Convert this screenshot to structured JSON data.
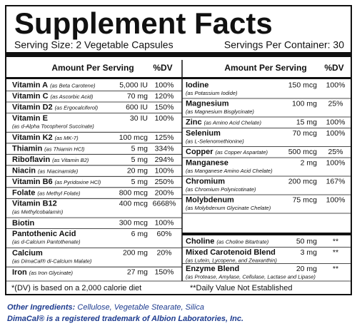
{
  "header": {
    "title": "Supplement Facts",
    "serving_size": "Serving Size: 2 Vegetable Capsules",
    "servings_per_container": "Servings Per Container: 30"
  },
  "left": {
    "amount_header": "Amount Per Serving",
    "dv_header": "%DV",
    "rows": [
      {
        "name": "Vitamin A",
        "source": "(as Beta Carotene)",
        "amount": "5,000 IU",
        "dv": "100%"
      },
      {
        "name": "Vitamin C",
        "source": "(as Ascorbic Acid)",
        "amount": "70 mg",
        "dv": "120%"
      },
      {
        "name": "Vitamin D2",
        "source": "(as Ergocalciferol)",
        "amount": "600 IU",
        "dv": "150%"
      },
      {
        "name": "Vitamin E",
        "source_below": "(as d-Alpha Tocopherol Succinate)",
        "amount": "30 IU",
        "dv": "100%"
      },
      {
        "name": "Vitamin K2",
        "source": "(as MK-7)",
        "amount": "100 mcg",
        "dv": "125%"
      },
      {
        "name": "Thiamin",
        "source": "(as Thiamin HCl)",
        "amount": "5 mg",
        "dv": "334%"
      },
      {
        "name": "Riboflavin",
        "source": "(as Vitamin B2)",
        "amount": "5 mg",
        "dv": "294%"
      },
      {
        "name": "Niacin",
        "source": "(as Niacinamide)",
        "amount": "20 mg",
        "dv": "100%"
      },
      {
        "name": "Vitamin B6",
        "source": "(as Pyridoxine HCl)",
        "amount": "5 mg",
        "dv": "250%"
      },
      {
        "name": "Folate",
        "source": "(as Methyl Folate)",
        "amount": "800 mcg",
        "dv": "200%"
      },
      {
        "name": "Vitamin B12",
        "source_below": "(as Methylcobalamin)",
        "amount": "400 mcg",
        "dv": "6668%"
      },
      {
        "name": "Biotin",
        "amount": "300 mcg",
        "dv": "100%"
      },
      {
        "name": "Pantothenic Acid",
        "source_below": "(as d-Calcium Pantothenate)",
        "amount": "6 mg",
        "dv": "60%"
      },
      {
        "name": "Calcium",
        "source_below": "(as DimaCal® di-Calcium Malate)",
        "amount": "200 mg",
        "dv": "20%"
      },
      {
        "name": "Iron",
        "source": "(as Iron Glycinate)",
        "amount": "27 mg",
        "dv": "150%"
      }
    ]
  },
  "right": {
    "amount_header": "Amount Per Serving",
    "dv_header": "%DV",
    "rows": [
      {
        "name": "Iodine",
        "source_below": "(as Potassium Iodide)",
        "amount": "150 mcg",
        "dv": "100%"
      },
      {
        "name": "Magnesium",
        "source_below": "(as Magnesium Bisglycinate)",
        "amount": "100 mg",
        "dv": "25%"
      },
      {
        "name": "Zinc",
        "source": "(as Amino Acid Chelate)",
        "amount": "15 mg",
        "dv": "100%"
      },
      {
        "name": "Selenium",
        "source_below": "(as L-Selenomethionine)",
        "amount": "70 mcg",
        "dv": "100%"
      },
      {
        "name": "Copper",
        "source": "(as Copper Aspartate)",
        "amount": "500 mcg",
        "dv": "25%"
      },
      {
        "name": "Manganese",
        "source_below": "(as Manganese Amino Acid Chelate)",
        "amount": "2 mg",
        "dv": "100%"
      },
      {
        "name": "Chromium",
        "source_below": "(as Chromium Polynicotinate)",
        "amount": "200 mcg",
        "dv": "167%"
      },
      {
        "name": "Molybdenum",
        "source_below": "(as Molybdenum Glycinate Chelate)",
        "amount": "75 mcg",
        "dv": "100%"
      }
    ],
    "other_rows": [
      {
        "name": "Choline",
        "source": "(as Choline Bitartrate)",
        "amount": "50 mg",
        "dv": "**"
      },
      {
        "name": "Mixed Carotenoid Blend",
        "source_below": "(as Lutein, Lycopene, and Zeaxanthin)",
        "amount": "3 mg",
        "dv": "**"
      },
      {
        "name": "Enzyme Blend",
        "source_below": "(as Protease, Amylase, Cellulase, Lactase and Lipase)",
        "amount": "20 mg",
        "dv": "**"
      }
    ]
  },
  "footnotes": {
    "dv": "*(DV) is based on a 2,000 calorie diet",
    "not_established": "**Daily Value Not Established"
  },
  "other_ingredients": {
    "label": "Other Ingredients:",
    "text": " Cellulose, Vegetable Stearate, Silica"
  },
  "trademark": "DimaCal® is a registered trademark of Albion Laboratories, Inc."
}
